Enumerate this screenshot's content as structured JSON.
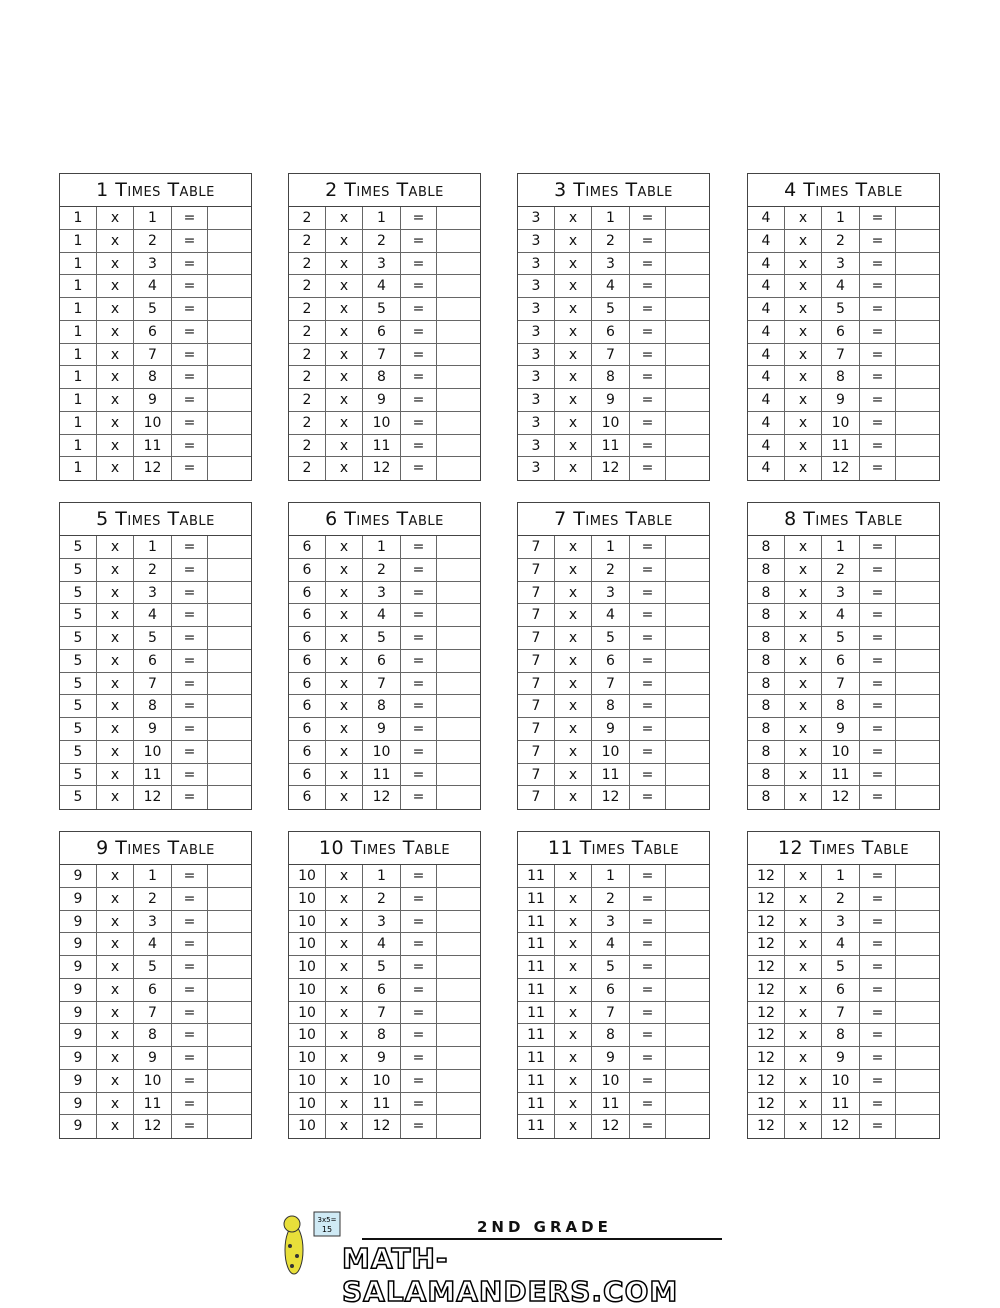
{
  "symbols": {
    "times": "x",
    "equals": "="
  },
  "multipliers": [
    "1",
    "2",
    "3",
    "4",
    "5",
    "6",
    "7",
    "8",
    "9",
    "10",
    "11",
    "12"
  ],
  "tables": [
    {
      "title": "1 Times Table",
      "n": "1"
    },
    {
      "title": "2 Times Table",
      "n": "2"
    },
    {
      "title": "3 Times Table",
      "n": "3"
    },
    {
      "title": "4 Times Table",
      "n": "4"
    },
    {
      "title": "5 Times Table",
      "n": "5"
    },
    {
      "title": "6 Times Table",
      "n": "6"
    },
    {
      "title": "7 Times Table",
      "n": "7"
    },
    {
      "title": "8 Times Table",
      "n": "8"
    },
    {
      "title": "9 Times Table",
      "n": "9"
    },
    {
      "title": "10 Times Table",
      "n": "10"
    },
    {
      "title": "11 Times Table",
      "n": "11"
    },
    {
      "title": "12 Times Table",
      "n": "12"
    }
  ],
  "logo": {
    "grade": "2ND GRADE",
    "site": "MATH-SALAMANDERS.COM",
    "board": "3x5= 15"
  }
}
